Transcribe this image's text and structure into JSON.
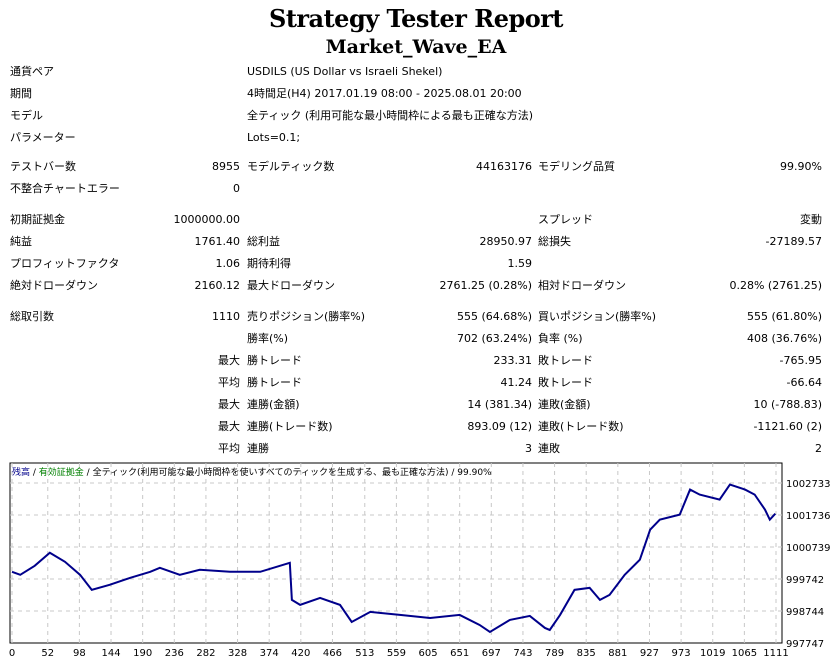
{
  "title": "Strategy Tester Report",
  "subtitle": "Market_Wave_EA",
  "info": [
    {
      "label": "通貨ペア",
      "value": "USDILS (US Dollar vs Israeli Shekel)"
    },
    {
      "label": "期間",
      "value": "4時間足(H4) 2017.01.19 08:00 - 2025.08.01 20:00"
    },
    {
      "label": "モデル",
      "value": "全ティック (利用可能な最小時間枠による最も正確な方法)"
    },
    {
      "label": "パラメーター",
      "value": "Lots=0.1;"
    }
  ],
  "stats": {
    "bars_l": "テストバー数",
    "bars": "8955",
    "ticks_l": "モデルティック数",
    "ticks": "44163176",
    "quality_l": "モデリング品質",
    "quality": "99.90%",
    "err_l": "不整合チャートエラー",
    "err": "0",
    "dep_l": "初期証拠金",
    "dep": "1000000.00",
    "spread_l": "スプレッド",
    "spread": "変動",
    "net_l": "純益",
    "net": "1761.40",
    "gp_l": "総利益",
    "gp": "28950.97",
    "gl_l": "総損失",
    "gl": "-27189.57",
    "pf_l": "プロフィットファクタ",
    "pf": "1.06",
    "ep_l": "期待利得",
    "ep": "1.59",
    "add_l": "絶対ドローダウン",
    "add": "2160.12",
    "mdd_l": "最大ドローダウン",
    "mdd": "2761.25 (0.28%)",
    "rdd_l": "相対ドローダウン",
    "rdd": "0.28% (2761.25)",
    "tt_l": "総取引数",
    "tt": "1110",
    "sp_l": "売りポジション(勝率%)",
    "sp": "555 (64.68%)",
    "lp_l": "買いポジション(勝率%)",
    "lp": "555 (61.80%)",
    "wr_l": "勝率(%)",
    "wr": "702 (63.24%)",
    "lr_l": "負率 (%)",
    "lr": "408 (36.76%)",
    "max": "最大",
    "avg": "平均",
    "lw_l": "勝トレード",
    "lw": "233.31",
    "ll_l": "敗トレード",
    "ll": "-765.95",
    "aw_l": "勝トレード",
    "aw": "41.24",
    "al_l": "敗トレード",
    "al": "-66.64",
    "mcw_l": "連勝(金額)",
    "mcw": "14 (381.34)",
    "mcl_l": "連敗(金額)",
    "mcl": "10 (-788.83)",
    "mcwp_l": "連勝(トレード数)",
    "mcwp": "893.09 (12)",
    "mclp_l": "連敗(トレード数)",
    "mclp": "-1121.60 (2)",
    "acw_l": "連勝",
    "acw": "3",
    "acl_l": "連敗",
    "acl": "2"
  },
  "chart_data": {
    "type": "line",
    "legend": [
      "残高",
      "有効証拠金",
      "全ティック(利用可能な最小時間枠を使いすべてのティックを生成する、最も正確な方法)",
      "99.90%"
    ],
    "colors": {
      "balance": "#00008b",
      "equity": "#008000"
    },
    "x": [
      0,
      12,
      33,
      55,
      77,
      99,
      116,
      142,
      172,
      201,
      215,
      244,
      273,
      317,
      361,
      404,
      407,
      419,
      448,
      477,
      494,
      521,
      564,
      608,
      651,
      680,
      695,
      724,
      753,
      775,
      782,
      797,
      818,
      840,
      855,
      869,
      891,
      913,
      928,
      942,
      971,
      986,
      1000,
      1029,
      1044,
      1066,
      1080,
      1095,
      1102,
      1110
    ],
    "y": [
      999966,
      999872,
      1000153,
      1000560,
      1000278,
      999872,
      999403,
      999560,
      999778,
      999966,
      1000091,
      999872,
      1000028,
      999966,
      999966,
      1000247,
      999091,
      998935,
      999153,
      998935,
      998403,
      998716,
      998622,
      998528,
      998622,
      998310,
      998091,
      998466,
      998591,
      998216,
      998153,
      998622,
      999403,
      999466,
      999091,
      999247,
      999872,
      1000341,
      1001278,
      1001591,
      1001747,
      1002528,
      1002372,
      1002216,
      1002685,
      1002528,
      1002372,
      1001903,
      1001591,
      1001778
    ],
    "xticks": [
      0,
      52,
      98,
      144,
      190,
      236,
      282,
      328,
      374,
      420,
      466,
      513,
      559,
      605,
      651,
      697,
      743,
      789,
      835,
      881,
      927,
      973,
      1019,
      1065,
      1111
    ],
    "yticks": [
      997747,
      998744,
      999742,
      1000739,
      1001736,
      1002733
    ],
    "ylim": [
      997747,
      1003370
    ],
    "xlim": [
      0,
      1120
    ]
  }
}
